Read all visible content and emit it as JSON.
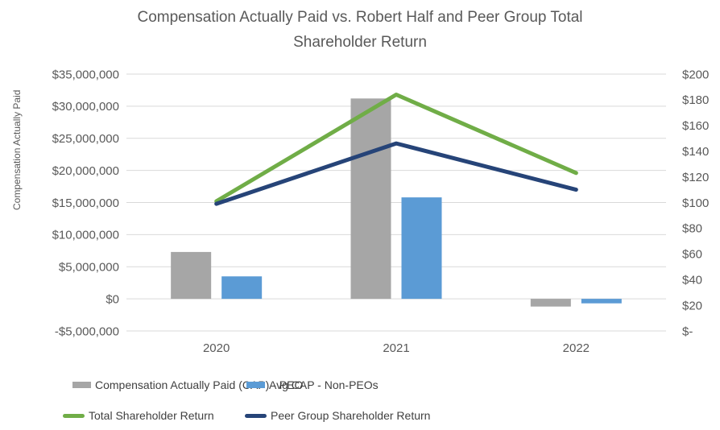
{
  "title_lines": [
    "Compensation Actually Paid vs. Robert Half and Peer Group Total",
    "Shareholder Return"
  ],
  "colors": {
    "cap_peo_gray": "#A6A6A6",
    "cap_nonpeo_blue": "#5B9BD5",
    "tsr_green": "#70AD47",
    "peer_tsr_navy": "#264478",
    "gridline": "#D9D9D9",
    "tick_text": "#595959",
    "legend_text": "#404040"
  },
  "chart_data": {
    "type": "bar",
    "subtype": "combo-bar-line-dual-axis",
    "title": "Compensation Actually Paid vs. Robert Half and Peer Group Total Shareholder Return",
    "categories": [
      "2020",
      "2021",
      "2022"
    ],
    "series": [
      {
        "name": "Compensation Actually Paid (CAP) - PEO",
        "type": "bar",
        "axis": "left",
        "color": "#A6A6A6",
        "values": [
          7300000,
          31200000,
          -1200000
        ]
      },
      {
        "name": "Avg CAP - Non-PEOs",
        "type": "bar",
        "axis": "left",
        "color": "#5B9BD5",
        "values": [
          3500000,
          15800000,
          -700000
        ]
      },
      {
        "name": "Total Shareholder Return",
        "type": "line",
        "axis": "right",
        "color": "#70AD47",
        "values": [
          101,
          184,
          123
        ]
      },
      {
        "name": "Peer Group Shareholder Return",
        "type": "line",
        "axis": "right",
        "color": "#264478",
        "values": [
          99,
          146,
          110
        ]
      }
    ],
    "left_axis": {
      "title": "Compensation Actually Paid",
      "min": -5000000,
      "max": 35000000,
      "tick_labels": [
        "$35,000,000",
        "$30,000,000",
        "$25,000,000",
        "$20,000,000",
        "$15,000,000",
        "$10,000,000",
        "$5,000,000",
        "$0",
        "-$5,000,000"
      ]
    },
    "right_axis": {
      "min": 0,
      "max": 200,
      "tick_labels": [
        "$200",
        "$180",
        "$160",
        "$140",
        "$120",
        "$100",
        "$80",
        "$60",
        "$40",
        "$20",
        "$-"
      ]
    },
    "grid": true,
    "legend_position": "bottom"
  },
  "legend": {
    "cap_peo": "Compensation Actually Paid (CAP) - PEO",
    "cap_nonpeo": "Avg CAP - Non-PEOs",
    "tsr": "Total Shareholder Return",
    "peer_tsr": "Peer Group Shareholder Return"
  }
}
